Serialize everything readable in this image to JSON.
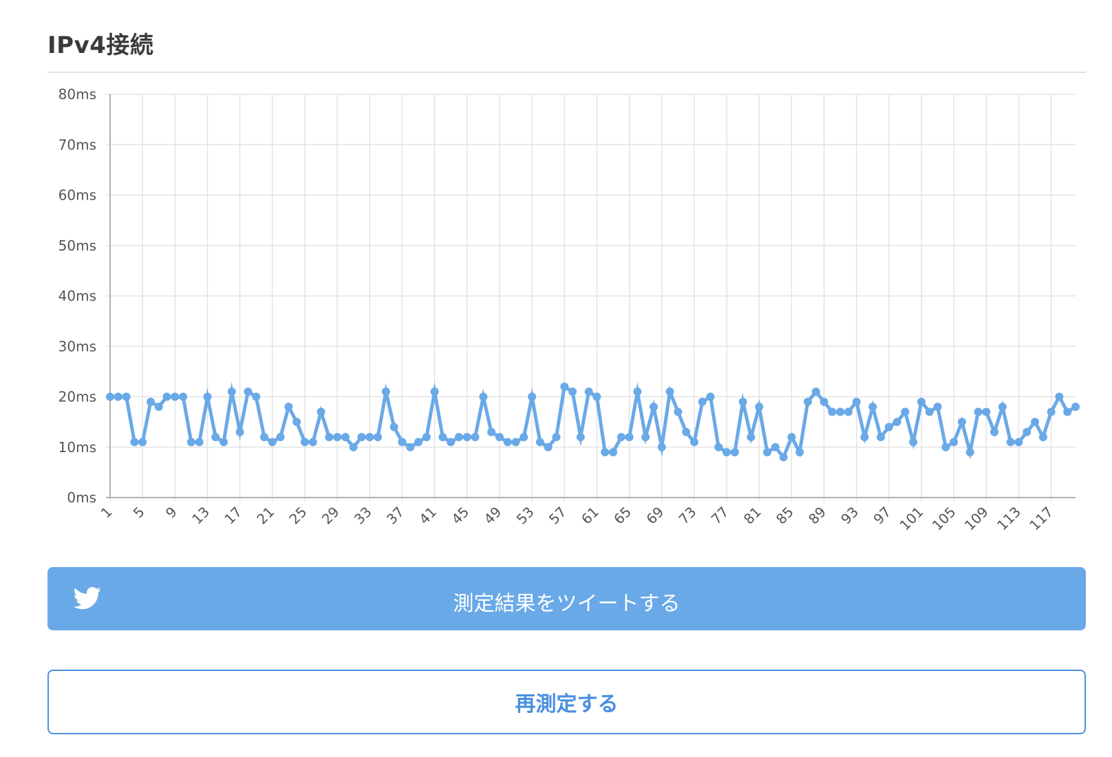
{
  "section": {
    "title": "IPv4接続"
  },
  "buttons": {
    "tweet_label": "測定結果をツイートする",
    "remeasure_label": "再測定する",
    "tweet_icon": "twitter-icon"
  },
  "colors": {
    "series": "#6aa9e7",
    "tweet_bg": "#6aa9e7",
    "remeasure_border": "#4a8fe0",
    "grid": "#e3e3e3"
  },
  "chart_data": {
    "type": "line",
    "title": "",
    "xlabel": "",
    "ylabel": "",
    "ylim": [
      0,
      80
    ],
    "y_ticks": [
      "0ms",
      "10ms",
      "20ms",
      "30ms",
      "40ms",
      "50ms",
      "60ms",
      "70ms",
      "80ms"
    ],
    "x_tick_labels": [
      "1",
      "5",
      "9",
      "13",
      "17",
      "21",
      "25",
      "29",
      "33",
      "37",
      "41",
      "45",
      "49",
      "53",
      "57",
      "61",
      "65",
      "69",
      "73",
      "77",
      "81",
      "85",
      "89",
      "93",
      "97",
      "101",
      "105",
      "109",
      "113",
      "117"
    ],
    "grid": true,
    "legend": "none",
    "series": [
      {
        "x": [
          1,
          2,
          3,
          4,
          5,
          6,
          7,
          8,
          9,
          10,
          11,
          12,
          13,
          14,
          15,
          16,
          17,
          18,
          19,
          20,
          21,
          22,
          23,
          24,
          25,
          26,
          27,
          28,
          29,
          30,
          31,
          32,
          33,
          34,
          35,
          36,
          37,
          38,
          39,
          40,
          41,
          42,
          43,
          44,
          45,
          46,
          47,
          48,
          49,
          50,
          51,
          52,
          53,
          54,
          55,
          56,
          57,
          58,
          59,
          60,
          61,
          62,
          63,
          64,
          65,
          66,
          67,
          68,
          69,
          70,
          71,
          72,
          73,
          74,
          75,
          76,
          77,
          78,
          79,
          80,
          81,
          82,
          83,
          84,
          85,
          86,
          87,
          88,
          89,
          90,
          91,
          92,
          93,
          94,
          95,
          96,
          97,
          98,
          99,
          100,
          101,
          102,
          103,
          104,
          105,
          106,
          107,
          108,
          109,
          110,
          111,
          112,
          113,
          114,
          115,
          116,
          117,
          118,
          119,
          120
        ],
        "values": [
          20,
          20,
          20,
          11,
          11,
          19,
          18,
          20,
          20,
          20,
          11,
          11,
          20,
          12,
          11,
          21,
          13,
          21,
          20,
          12,
          11,
          12,
          18,
          15,
          11,
          11,
          17,
          12,
          12,
          12,
          10,
          12,
          12,
          12,
          21,
          14,
          11,
          10,
          11,
          12,
          21,
          12,
          11,
          12,
          12,
          12,
          20,
          13,
          12,
          11,
          11,
          12,
          20,
          11,
          10,
          12,
          22,
          21,
          12,
          21,
          20,
          9,
          9,
          12,
          12,
          21,
          12,
          18,
          10,
          21,
          17,
          13,
          11,
          19,
          20,
          10,
          9,
          9,
          19,
          12,
          18,
          9,
          10,
          8,
          12,
          9,
          19,
          21,
          19,
          17,
          17,
          17,
          19,
          12,
          18,
          12,
          14,
          15,
          17,
          11,
          19,
          17,
          18,
          10,
          11,
          15,
          9,
          17,
          17,
          13,
          18,
          11,
          11,
          13,
          15,
          12,
          17,
          20,
          17,
          18
        ]
      }
    ]
  }
}
